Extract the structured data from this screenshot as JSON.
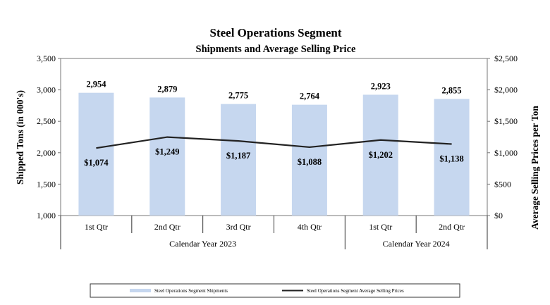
{
  "chart_data": {
    "type": "bar",
    "title": "Steel Operations Segment",
    "subtitle": "Shipments and Average Selling Price",
    "categories": [
      "1st Qtr",
      "2nd Qtr",
      "3rd Qtr",
      "4th Qtr",
      "1st Qtr",
      "2nd Qtr"
    ],
    "groups": [
      {
        "label": "Calendar Year 2023",
        "span": 4
      },
      {
        "label": "Calendar Year 2024",
        "span": 2
      }
    ],
    "series": [
      {
        "name": "Steel Operations Segment Shipments",
        "type": "bar",
        "axis": "left",
        "values": [
          2954,
          2879,
          2775,
          2764,
          2923,
          2855
        ],
        "labels": [
          "2,954",
          "2,879",
          "2,775",
          "2,764",
          "2,923",
          "2,855"
        ],
        "color": "#c6d7ef"
      },
      {
        "name": "Steel Operations Segment Average Selling Prices",
        "type": "line",
        "axis": "right",
        "values": [
          1074,
          1249,
          1187,
          1088,
          1202,
          1138
        ],
        "labels": [
          "$1,074",
          "$1,249",
          "$1,187",
          "$1,088",
          "$1,202",
          "$1,138"
        ],
        "color": "#222222"
      }
    ],
    "ylabel": "Shipped Tons (in 000's)",
    "ylim": [
      1000,
      3500
    ],
    "yticks": [
      "1,000",
      "1,500",
      "2,000",
      "2,500",
      "3,000",
      "3,500"
    ],
    "y2label": "Average Selling Prices per Ton",
    "y2lim": [
      0,
      2500
    ],
    "y2ticks": [
      "$0",
      "$500",
      "$1,000",
      "$1,500",
      "$2,000",
      "$2,500"
    ],
    "grid": false,
    "legend_position": "bottom"
  }
}
